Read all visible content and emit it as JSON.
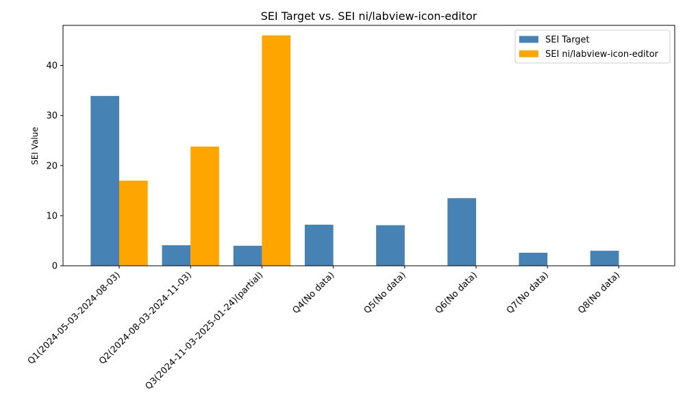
{
  "chart_data": {
    "type": "bar",
    "title": "SEI Target vs. SEI ni/labview-icon-editor",
    "xlabel": "",
    "ylabel": "SEI Value",
    "ylim": [
      0,
      48
    ],
    "yticks": [
      0,
      10,
      20,
      30,
      40
    ],
    "grid": false,
    "legend_position": "top-right",
    "categories": [
      "Q1(2024-05-03-2024-08-03)",
      "Q2(2024-08-03-2024-11-03)",
      "Q3(2024-11-03-2025-01-24)(partial)",
      "Q4(No data)",
      "Q5(No data)",
      "Q6(No data)",
      "Q7(No data)",
      "Q8(No data)"
    ],
    "series": [
      {
        "name": "SEI Target",
        "color": "#4682b4",
        "values": [
          33.9,
          4.1,
          4.0,
          8.2,
          8.1,
          13.5,
          2.6,
          3.0
        ]
      },
      {
        "name": "SEI ni/labview-icon-editor",
        "color": "#ffa500",
        "values": [
          17.0,
          23.8,
          46.0,
          0,
          0,
          0,
          0,
          0
        ]
      }
    ]
  }
}
